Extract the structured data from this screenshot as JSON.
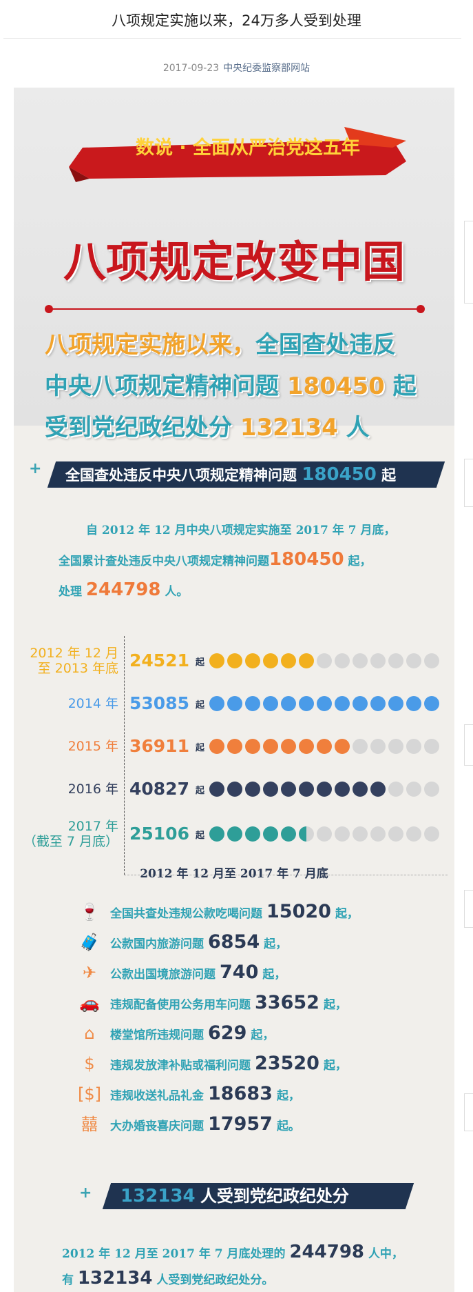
{
  "article": {
    "title": "八项规定实施以来，24万多人受到处理",
    "date": "2017-09-23",
    "source": "中央纪委监察部网站"
  },
  "banner": {
    "ribbon": "数说 · 全面从严治党这五年",
    "main_title": "八项规定改变中国",
    "line1_a": "八项规定实施以来，",
    "line1_b": "全国查处违反",
    "line2_a": "中央八项规定精神问题",
    "line2_num": "180450",
    "line2_unit": "起",
    "line3_a": "受到党纪政纪处分",
    "line3_num": "132134",
    "line3_unit": "人"
  },
  "section1": {
    "header_text": "全国查处违反中央八项规定精神问题",
    "header_num": "180450",
    "header_unit": "起",
    "p1": "自 2012 年 12 月中央八项规定实施至 2017 年 7 月底，",
    "p2_a": "全国累计查处违反中央八项规定精神问题",
    "p2_num": "180450",
    "p2_unit": "起，",
    "p3_a": "处理",
    "p3_num": "244798",
    "p3_unit": "人。"
  },
  "chart_data": {
    "type": "bar",
    "unit": "起",
    "dots_total": 13,
    "rows": [
      {
        "label1": "2012 年 12 月",
        "label2": "至 2013 年底",
        "value": "24521",
        "filled": 6,
        "color": "#f2b01e"
      },
      {
        "label1": "2014 年",
        "label2": "",
        "value": "53085",
        "filled": 13,
        "color": "#4a9be8"
      },
      {
        "label1": "2015 年",
        "label2": "",
        "value": "36911",
        "filled": 8,
        "color": "#f07f3c"
      },
      {
        "label1": "2016 年",
        "label2": "",
        "value": "40827",
        "filled": 10,
        "color": "#34405e"
      },
      {
        "label1": "2017 年",
        "label2": "（截至 7 月底）",
        "value": "25106",
        "filled": 5.5,
        "color": "#2e9e98"
      }
    ],
    "empty_color": "#d6d6d6"
  },
  "section2": {
    "heading": "2012 年 12 月至 2017 年 7 月底",
    "items": [
      {
        "icon": "wine-glass-icon",
        "glyph": "🍷",
        "text": "全国共查处违规公款吃喝问题",
        "num": "15020",
        "unit": "起，"
      },
      {
        "icon": "suitcase-icon",
        "glyph": "🧳",
        "text": "公款国内旅游问题",
        "num": "6854",
        "unit": "起，"
      },
      {
        "icon": "airplane-icon",
        "glyph": "✈",
        "text": "公款出国境旅游问题",
        "num": "740",
        "unit": "起，"
      },
      {
        "icon": "car-icon",
        "glyph": "🚗",
        "text": "违规配备使用公务用车问题",
        "num": "33652",
        "unit": "起，"
      },
      {
        "icon": "house-icon",
        "glyph": "⌂",
        "text": "楼堂馆所违规问题",
        "num": "629",
        "unit": "起，"
      },
      {
        "icon": "coins-icon",
        "glyph": "$",
        "text": "违规发放津补贴或福利问题",
        "num": "23520",
        "unit": "起，"
      },
      {
        "icon": "banknote-icon",
        "glyph": "[$]",
        "text": "违规收送礼品礼金",
        "num": "18683",
        "unit": "起，"
      },
      {
        "icon": "double-happiness-icon",
        "glyph": "囍",
        "text": "大办婚丧喜庆问题",
        "num": "17957",
        "unit": "起。"
      }
    ]
  },
  "section3": {
    "header_num": "132134",
    "header_text": "人受到党纪政纪处分",
    "p1_a": "2012 年 12 月至 2017 年 7 月底处理的",
    "p1_num": "244798",
    "p1_unit": "人中，",
    "p2_a": "有",
    "p2_num": "132134",
    "p2_unit": "人受到党纪政纪处分。"
  },
  "colors": {
    "red": "#c8161d",
    "teal": "#2fa2b4",
    "orange": "#f2a32b",
    "navy": "#1f3350"
  }
}
